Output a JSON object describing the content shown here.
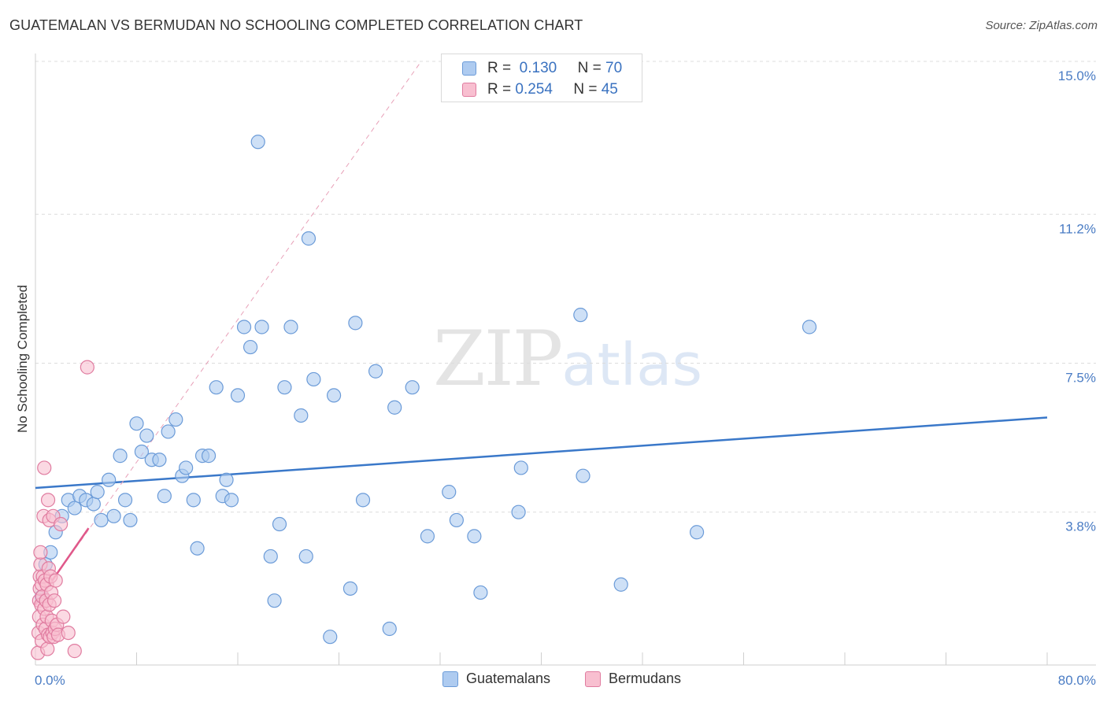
{
  "header": {
    "title": "GUATEMALAN VS BERMUDAN NO SCHOOLING COMPLETED CORRELATION CHART",
    "source": "Source: ZipAtlas.com"
  },
  "watermark": {
    "zip": "ZIP",
    "atlas": "atlas"
  },
  "legend": {
    "rows": [
      {
        "r_label": "R =",
        "r_value": "0.130",
        "n_label": "N =",
        "n_value": "70",
        "color": "#aecbf0",
        "border": "#6b9bd8"
      },
      {
        "r_label": "R =",
        "r_value": "0.254",
        "n_label": "N =",
        "n_value": "45",
        "color": "#f8bfd0",
        "border": "#e07ca0"
      }
    ]
  },
  "bottom_legend": [
    {
      "label": "Guatemalans",
      "color": "#aecbf0",
      "border": "#6b9bd8"
    },
    {
      "label": "Bermudans",
      "color": "#f8bfd0",
      "border": "#e07ca0"
    }
  ],
  "chart_data": {
    "type": "scatter",
    "title": "GUATEMALAN VS BERMUDAN NO SCHOOLING COMPLETED CORRELATION CHART",
    "xlabel": "",
    "ylabel": "No Schooling Completed",
    "xlim": [
      0,
      80
    ],
    "ylim": [
      0,
      15
    ],
    "x_tick_labels": [
      "0.0%",
      "80.0%"
    ],
    "y_ticks": [
      3.8,
      7.5,
      11.2,
      15.0
    ],
    "y_tick_labels": [
      "3.8%",
      "7.5%",
      "11.2%",
      "15.0%"
    ],
    "grid": true,
    "series": [
      {
        "name": "Guatemalans",
        "color": "#aecbf0",
        "stroke": "#6b9bd8",
        "trend": {
          "x": [
            0,
            80
          ],
          "y": [
            4.4,
            6.15
          ],
          "color": "#3a78c9"
        },
        "points": [
          [
            0.5,
            1.7
          ],
          [
            0.8,
            2.5
          ],
          [
            1.2,
            2.8
          ],
          [
            1.6,
            3.3
          ],
          [
            2.1,
            3.7
          ],
          [
            2.6,
            4.1
          ],
          [
            3.1,
            3.9
          ],
          [
            3.5,
            4.2
          ],
          [
            4.0,
            4.1
          ],
          [
            4.6,
            4.0
          ],
          [
            4.9,
            4.3
          ],
          [
            5.2,
            3.6
          ],
          [
            5.8,
            4.6
          ],
          [
            6.2,
            3.7
          ],
          [
            6.7,
            5.2
          ],
          [
            7.1,
            4.1
          ],
          [
            7.5,
            3.6
          ],
          [
            8.0,
            6.0
          ],
          [
            8.4,
            5.3
          ],
          [
            8.8,
            5.7
          ],
          [
            9.2,
            5.1
          ],
          [
            9.8,
            5.1
          ],
          [
            10.2,
            4.2
          ],
          [
            10.5,
            5.8
          ],
          [
            11.1,
            6.1
          ],
          [
            11.6,
            4.7
          ],
          [
            11.9,
            4.9
          ],
          [
            12.5,
            4.1
          ],
          [
            12.8,
            2.9
          ],
          [
            13.2,
            5.2
          ],
          [
            13.7,
            5.2
          ],
          [
            14.3,
            6.9
          ],
          [
            14.8,
            4.2
          ],
          [
            15.1,
            4.6
          ],
          [
            15.5,
            4.1
          ],
          [
            16.0,
            6.7
          ],
          [
            16.5,
            8.4
          ],
          [
            17.0,
            7.9
          ],
          [
            17.6,
            13.0
          ],
          [
            17.9,
            8.4
          ],
          [
            18.6,
            2.7
          ],
          [
            18.9,
            1.6
          ],
          [
            19.3,
            3.5
          ],
          [
            19.7,
            6.9
          ],
          [
            20.2,
            8.4
          ],
          [
            21.0,
            6.2
          ],
          [
            21.4,
            2.7
          ],
          [
            21.6,
            10.6
          ],
          [
            22.0,
            7.1
          ],
          [
            23.3,
            0.7
          ],
          [
            23.6,
            6.7
          ],
          [
            24.9,
            1.9
          ],
          [
            25.3,
            8.5
          ],
          [
            25.9,
            4.1
          ],
          [
            26.9,
            7.3
          ],
          [
            28.0,
            0.9
          ],
          [
            28.4,
            6.4
          ],
          [
            29.8,
            6.9
          ],
          [
            31.0,
            3.2
          ],
          [
            32.7,
            4.3
          ],
          [
            33.3,
            3.6
          ],
          [
            34.7,
            3.2
          ],
          [
            35.2,
            1.8
          ],
          [
            38.2,
            3.8
          ],
          [
            38.4,
            4.9
          ],
          [
            43.1,
            8.7
          ],
          [
            43.3,
            4.7
          ],
          [
            46.3,
            2.0
          ],
          [
            52.3,
            3.3
          ],
          [
            61.2,
            8.4
          ]
        ]
      },
      {
        "name": "Bermudans",
        "color": "#f8bfd0",
        "stroke": "#e07ca0",
        "trend": {
          "x": [
            0,
            4.2
          ],
          "y": [
            1.5,
            3.4
          ],
          "color": "#e0588a"
        },
        "trend_extended": {
          "x": [
            0,
            30.5
          ],
          "y": [
            1.5,
            15.0
          ],
          "color": "#e8a0b8"
        },
        "points": [
          [
            0.2,
            0.3
          ],
          [
            0.25,
            0.8
          ],
          [
            0.3,
            1.2
          ],
          [
            0.3,
            1.6
          ],
          [
            0.35,
            1.9
          ],
          [
            0.35,
            2.2
          ],
          [
            0.4,
            2.5
          ],
          [
            0.4,
            2.8
          ],
          [
            0.45,
            1.5
          ],
          [
            0.5,
            2.0
          ],
          [
            0.5,
            0.6
          ],
          [
            0.55,
            1.7
          ],
          [
            0.6,
            1.0
          ],
          [
            0.6,
            2.2
          ],
          [
            0.65,
            3.7
          ],
          [
            0.7,
            1.4
          ],
          [
            0.7,
            4.9
          ],
          [
            0.75,
            2.1
          ],
          [
            0.8,
            0.9
          ],
          [
            0.85,
            1.6
          ],
          [
            0.9,
            2.0
          ],
          [
            0.9,
            1.2
          ],
          [
            0.95,
            0.4
          ],
          [
            1.0,
            0.75
          ],
          [
            1.0,
            4.1
          ],
          [
            1.05,
            2.4
          ],
          [
            1.1,
            1.5
          ],
          [
            1.1,
            3.6
          ],
          [
            1.15,
            0.7
          ],
          [
            1.2,
            2.2
          ],
          [
            1.25,
            1.8
          ],
          [
            1.3,
            1.1
          ],
          [
            1.35,
            0.8
          ],
          [
            1.4,
            3.7
          ],
          [
            1.45,
            0.7
          ],
          [
            1.5,
            1.6
          ],
          [
            1.55,
            0.9
          ],
          [
            1.6,
            2.1
          ],
          [
            1.7,
            1.0
          ],
          [
            1.8,
            0.75
          ],
          [
            2.0,
            3.5
          ],
          [
            2.2,
            1.2
          ],
          [
            2.6,
            0.8
          ],
          [
            3.1,
            0.35
          ],
          [
            4.1,
            7.4
          ]
        ]
      }
    ]
  }
}
